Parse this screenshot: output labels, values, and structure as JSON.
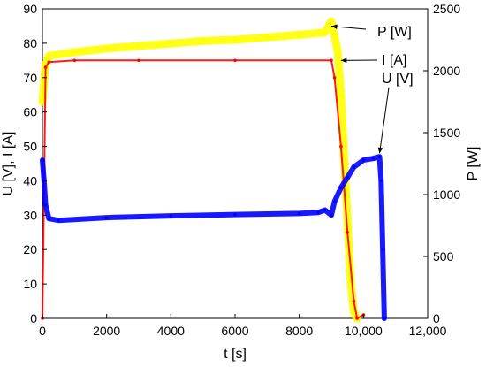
{
  "chart_data": {
    "type": "line",
    "title": "",
    "xlabel": "t [s]",
    "ylabel_left": "U [V], I [A]",
    "ylabel_right": "P [W]",
    "xlim": [
      0,
      12000
    ],
    "ylim_left": [
      0,
      90
    ],
    "ylim_right": [
      0,
      2500
    ],
    "grid": false,
    "x_ticks": [
      {
        "value": 0,
        "label": "0"
      },
      {
        "value": 2000,
        "label": "2000"
      },
      {
        "value": 4000,
        "label": "4000"
      },
      {
        "value": 6000,
        "label": "6000"
      },
      {
        "value": 8000,
        "label": "8000"
      },
      {
        "value": 10000,
        "label": "10,000"
      },
      {
        "value": 12000,
        "label": "12,000"
      }
    ],
    "y_left_ticks": [
      {
        "value": 0,
        "label": "0"
      },
      {
        "value": 10,
        "label": "10"
      },
      {
        "value": 20,
        "label": "20"
      },
      {
        "value": 30,
        "label": "30"
      },
      {
        "value": 40,
        "label": "40"
      },
      {
        "value": 50,
        "label": "50"
      },
      {
        "value": 60,
        "label": "60"
      },
      {
        "value": 70,
        "label": "70"
      },
      {
        "value": 80,
        "label": "80"
      },
      {
        "value": 90,
        "label": "90"
      }
    ],
    "y_right_ticks": [
      {
        "value": 0,
        "label": "0"
      },
      {
        "value": 500,
        "label": "500"
      },
      {
        "value": 1000,
        "label": "1000"
      },
      {
        "value": 1500,
        "label": "1500"
      },
      {
        "value": 2000,
        "label": "2000"
      },
      {
        "value": 2500,
        "label": "2500"
      }
    ],
    "series": [
      {
        "name": "P [W]",
        "axis": "right",
        "color": "#ffff00",
        "points": [
          [
            0,
            1750
          ],
          [
            100,
            2050
          ],
          [
            200,
            2120
          ],
          [
            1000,
            2150
          ],
          [
            2000,
            2180
          ],
          [
            3000,
            2200
          ],
          [
            4000,
            2220
          ],
          [
            5000,
            2240
          ],
          [
            6000,
            2250
          ],
          [
            7000,
            2270
          ],
          [
            8000,
            2290
          ],
          [
            8800,
            2310
          ],
          [
            9000,
            2400
          ],
          [
            9200,
            2150
          ],
          [
            9300,
            1800
          ],
          [
            9400,
            1300
          ],
          [
            9500,
            800
          ],
          [
            9600,
            300
          ],
          [
            9700,
            50
          ],
          [
            9800,
            0
          ]
        ]
      },
      {
        "name": "I [A]",
        "axis": "left",
        "color": "#ff0000",
        "points": [
          [
            0,
            0
          ],
          [
            100,
            73
          ],
          [
            200,
            74.5
          ],
          [
            1000,
            75
          ],
          [
            3000,
            75
          ],
          [
            6000,
            75
          ],
          [
            9000,
            75
          ],
          [
            9100,
            70
          ],
          [
            9300,
            50
          ],
          [
            9500,
            25
          ],
          [
            9700,
            5
          ],
          [
            9800,
            0
          ],
          [
            10000,
            1
          ]
        ]
      },
      {
        "name": "U [V]",
        "axis": "left",
        "color": "#0000ff",
        "points": [
          [
            0,
            46
          ],
          [
            50,
            40
          ],
          [
            100,
            33
          ],
          [
            200,
            29
          ],
          [
            500,
            28.5
          ],
          [
            2000,
            29.3
          ],
          [
            4000,
            29.8
          ],
          [
            6000,
            30.2
          ],
          [
            8000,
            30.5
          ],
          [
            8600,
            30.8
          ],
          [
            8800,
            31.5
          ],
          [
            9000,
            30
          ],
          [
            9100,
            34
          ],
          [
            9300,
            38
          ],
          [
            9500,
            41
          ],
          [
            9700,
            44
          ],
          [
            10000,
            46
          ],
          [
            10300,
            46.5
          ],
          [
            10500,
            47
          ],
          [
            10550,
            40
          ],
          [
            10600,
            20
          ],
          [
            10650,
            0
          ]
        ]
      }
    ],
    "annotations": [
      {
        "text": "P [W]",
        "target": [
          9000,
          2360
        ],
        "axis": "right"
      },
      {
        "text": "I [A]",
        "target": [
          9300,
          75
        ],
        "axis": "left"
      },
      {
        "text": "U [V]",
        "target": [
          10500,
          48
        ],
        "axis": "left"
      }
    ]
  }
}
